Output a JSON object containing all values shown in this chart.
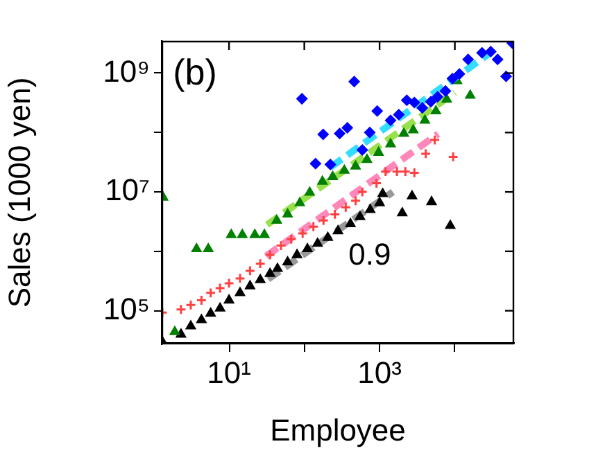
{
  "chart_data": {
    "type": "scatter",
    "xlabel": "Employee",
    "ylabel": "Sales (1000 yen)",
    "log": "xy",
    "xlim": [
      1.3,
      60000
    ],
    "ylim": [
      28000,
      3400000000
    ],
    "xticks": [
      {
        "value": 10,
        "label": "10¹"
      },
      {
        "value": 100,
        "label": null
      },
      {
        "value": 1000,
        "label": "10³"
      },
      {
        "value": 10000,
        "label": null
      }
    ],
    "yticks": [
      {
        "value": 100000,
        "label": "10⁵"
      },
      {
        "value": 1000000,
        "label": null
      },
      {
        "value": 10000000,
        "label": "10⁷"
      },
      {
        "value": 100000000,
        "label": null
      },
      {
        "value": 1000000000,
        "label": "10⁹"
      }
    ],
    "annotations": [
      "(b)",
      "0.9"
    ],
    "series": [
      {
        "marker": "diamond",
        "color": "#0000ff",
        "x": [
          93,
          141,
          178,
          222,
          295,
          373,
          460,
          590,
          740,
          930,
          1400,
          1800,
          2300,
          2900,
          3700,
          4800,
          5900,
          7500,
          9300,
          11500,
          15000,
          23000,
          30000,
          37000,
          48000,
          58000
        ],
        "values": [
          370000000,
          30000000,
          93000000,
          29000000,
          96000000,
          120000000,
          720000000,
          51000000,
          100000000,
          230000000,
          160000000,
          200000000,
          350000000,
          320000000,
          260000000,
          330000000,
          400000000,
          500000000,
          810000000,
          970000000,
          1700000000,
          2200000000,
          2300000000,
          1700000000,
          880000000,
          3200000000
        ]
      },
      {
        "type": "line",
        "line_style": "dashed",
        "color": "#33ddff",
        "x": [
          222,
          31000
        ],
        "values": [
          26000000,
          2300000000
        ]
      },
      {
        "marker": "triangle",
        "color": "#008000",
        "x": [
          1.33,
          1.9,
          3.7,
          5.3,
          10.7,
          15,
          22,
          29.5,
          43,
          60,
          87,
          118,
          174,
          238,
          340,
          480,
          680,
          970,
          1400,
          2100,
          2800,
          4000,
          5600,
          7800,
          10700,
          16000
        ],
        "values": [
          8100000,
          44000,
          1100000,
          1100000,
          1900000,
          1900000,
          1900000,
          1900000,
          3300000,
          4200000,
          6500000,
          9800000,
          15000000,
          18000000,
          23000000,
          27000000,
          35000000,
          46000000,
          64000000,
          96000000,
          110000000,
          160000000,
          230000000,
          360000000,
          740000000,
          420000000
        ]
      },
      {
        "type": "line",
        "line_style": "dashed",
        "color": "#99e04d",
        "x": [
          32,
          10000
        ],
        "values": [
          2800000,
          470000000
        ]
      },
      {
        "marker": "cross",
        "color": "#ff4040",
        "x": [
          1.3,
          2.3,
          3.1,
          4.3,
          5.7,
          7.6,
          10,
          14,
          19,
          26,
          35,
          49,
          67,
          95,
          132,
          180,
          255,
          355,
          480,
          590,
          910,
          1200,
          1700,
          2200,
          2900,
          4100,
          5400,
          9500
        ],
        "values": [
          93000,
          105000,
          125000,
          150000,
          200000,
          240000,
          290000,
          350000,
          470000,
          620000,
          870000,
          1250000,
          1600000,
          2000000,
          2600000,
          3300000,
          4200000,
          5500000,
          7100000,
          10000000,
          14000000,
          22000000,
          22000000,
          22000000,
          21000000,
          44000000,
          75000000,
          39000000
        ]
      },
      {
        "type": "line",
        "line_style": "dashed",
        "color": "#ff88bb",
        "x": [
          31,
          6000
        ],
        "values": [
          830000,
          95000000
        ]
      },
      {
        "marker": "triangle",
        "color": "#000000",
        "x": [
          1.3,
          2.3,
          3.1,
          4.3,
          5.7,
          7.6,
          10,
          14,
          19,
          26,
          35,
          44,
          60,
          80,
          110,
          150,
          205,
          280,
          410,
          550,
          750,
          1000,
          1100,
          2000,
          2700,
          4900,
          8700
        ],
        "values": [
          30000,
          40000,
          55000,
          70000,
          90000,
          110000,
          150000,
          200000,
          260000,
          330000,
          420000,
          510000,
          660000,
          870000,
          1100000,
          1350000,
          1700000,
          2200000,
          2900000,
          3800000,
          5000000,
          6500000,
          9300000,
          4400000,
          8500000,
          6800000,
          2700000
        ]
      },
      {
        "type": "line",
        "line_style": "dashed",
        "color": "#999999",
        "x": [
          33,
          1500
        ],
        "values": [
          340000,
          10000000
        ]
      }
    ]
  }
}
